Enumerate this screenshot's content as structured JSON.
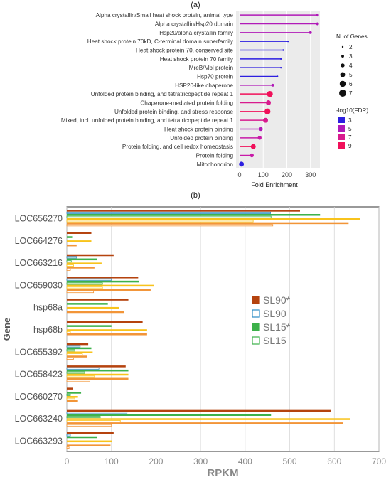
{
  "panel_a_label": "(a)",
  "panel_b_label": "(b)",
  "chart_data": [
    {
      "type": "lollipop",
      "panel": "(a)",
      "xlabel": "Fold Enrichment",
      "xticks": [
        0,
        100,
        200,
        300
      ],
      "xlim": [
        -15,
        340
      ],
      "categories": [
        "Alpha crystallin/Small heat shock protein, animal type",
        "Alpha crystallin/Hsp20 domain",
        "Hsp20/alpha crystallin family",
        "Heat shock protein 70kD, C-terminal domain superfamily",
        "Heat shock protein 70, conserved site",
        "Heat shock protein 70 family",
        "MreB/Mbl protein",
        "Hsp70 protein",
        "HSP20-like chaperone",
        "Unfolded protein binding, and tetratricopeptide repeat 1",
        "Chaperone-mediated protein folding",
        "Unfolded protein binding, and stress response",
        "Mixed, incl. unfolded protein binding, and tetratricopeptide repeat 1",
        "Heat shock protein binding",
        "Unfolded protein binding",
        "Protein folding, and cell redox homeostasis",
        "Protein folding",
        "Mitochondrion"
      ],
      "values": [
        330,
        330,
        300,
        205,
        185,
        175,
        175,
        160,
        140,
        128,
        122,
        118,
        110,
        90,
        85,
        58,
        52,
        8
      ],
      "n_genes": [
        3,
        3,
        3,
        2,
        2,
        2,
        2,
        2,
        3,
        6,
        5,
        6,
        5,
        4,
        4,
        5,
        4,
        5
      ],
      "log10fdr": [
        5,
        5,
        5,
        3,
        3,
        3,
        3,
        3,
        5,
        9,
        7,
        9,
        7,
        5,
        6,
        9,
        6,
        3
      ],
      "size_legend": {
        "title": "N. of Genes",
        "values": [
          "2",
          "3",
          "4",
          "5",
          "6",
          "7"
        ]
      },
      "color_legend": {
        "title": "-log10(FDR)",
        "values": [
          "3",
          "5",
          "7",
          "9"
        ],
        "colors": [
          "#2d1fe0",
          "#b01ab8",
          "#d81b8e",
          "#f0105a"
        ]
      },
      "background": "#ebebeb"
    },
    {
      "type": "bar",
      "orientation": "horizontal",
      "panel": "(b)",
      "xlabel": "RPKM",
      "ylabel": "Gene",
      "xlim": [
        0,
        700
      ],
      "xticks": [
        0,
        100,
        200,
        300,
        400,
        500,
        600,
        700
      ],
      "categories": [
        "LOC656270",
        "LOC664276",
        "LOC663216",
        "LOC659030",
        "hsp68a",
        "hsp68b",
        "LOC655392",
        "LOC658423",
        "LOC660270",
        "LOC663240",
        "LOC663293"
      ],
      "series": [
        {
          "name": "SL90*",
          "color": "#b5430e",
          "filled": true,
          "values": [
            523,
            55,
            105,
            160,
            138,
            170,
            48,
            132,
            14,
            592,
            105
          ]
        },
        {
          "name": "SL90",
          "color": "#2b8dc5",
          "filled": false,
          "values": [
            457,
            0,
            22,
            100,
            0,
            0,
            30,
            72,
            0,
            135,
            8
          ]
        },
        {
          "name": "SL15*",
          "color": "#3cb14a",
          "filled": true,
          "values": [
            568,
            12,
            68,
            162,
            92,
            100,
            55,
            138,
            32,
            458,
            68
          ]
        },
        {
          "name": "SL15",
          "color": "#3cb14a",
          "filled": false,
          "values": [
            458,
            0,
            10,
            80,
            0,
            0,
            18,
            40,
            8,
            75,
            0
          ]
        },
        {
          "name": "",
          "color": "#f8c31c",
          "filled": true,
          "values": [
            658,
            55,
            78,
            195,
            118,
            180,
            58,
            138,
            25,
            635,
            102
          ]
        },
        {
          "name": "",
          "color": "#f8c31c",
          "filled": false,
          "values": [
            418,
            0,
            15,
            80,
            0,
            8,
            35,
            62,
            18,
            120,
            0
          ]
        },
        {
          "name": "",
          "color": "#f29538",
          "filled": true,
          "values": [
            632,
            22,
            62,
            188,
            128,
            180,
            45,
            138,
            25,
            620,
            98
          ]
        },
        {
          "name": "",
          "color": "#f29538",
          "filled": false,
          "values": [
            462,
            0,
            8,
            60,
            0,
            0,
            15,
            52,
            0,
            100,
            5
          ]
        }
      ],
      "legend": [
        "SL90*",
        "SL90",
        "SL15*",
        "SL15"
      ],
      "grid": true
    }
  ]
}
